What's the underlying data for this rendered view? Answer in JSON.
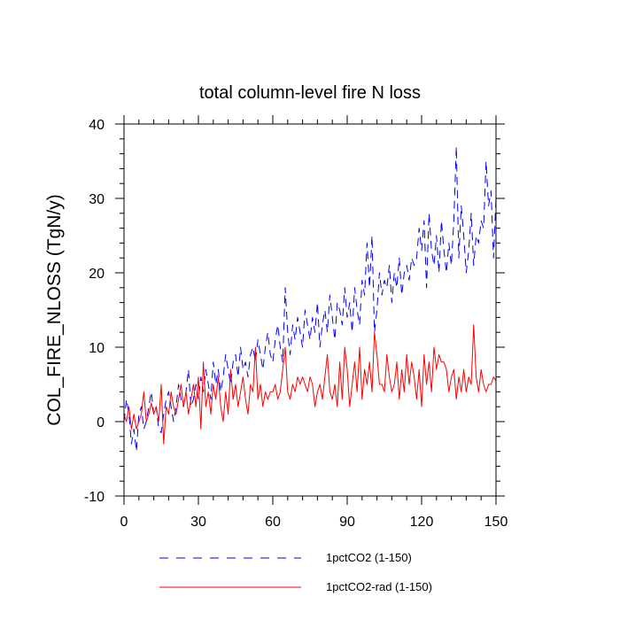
{
  "chart_data": {
    "type": "line",
    "title": "total column-level fire N loss",
    "xlabel": "",
    "ylabel": "COL_FIRE_NLOSS  (TgN/y)",
    "xlim": [
      0,
      150
    ],
    "ylim": [
      -10,
      40
    ],
    "xticks": [
      0,
      30,
      60,
      90,
      120,
      150
    ],
    "yticks": [
      -10,
      0,
      10,
      20,
      30,
      40
    ],
    "grid": false,
    "legend_position": "bottom",
    "series": [
      {
        "name": "1pctCO2 (1-150)",
        "color": "#0000ff",
        "dash": "dashed",
        "points": [
          [
            0,
            0
          ],
          [
            1,
            3
          ],
          [
            2,
            1
          ],
          [
            3,
            -3
          ],
          [
            4,
            -1
          ],
          [
            5,
            -4
          ],
          [
            6,
            1
          ],
          [
            7,
            2
          ],
          [
            8,
            -1
          ],
          [
            9,
            0
          ],
          [
            10,
            2
          ],
          [
            11,
            4
          ],
          [
            12,
            1
          ],
          [
            13,
            2
          ],
          [
            14,
            -1
          ],
          [
            15,
            -1.5
          ],
          [
            16,
            1
          ],
          [
            17,
            3
          ],
          [
            18,
            4
          ],
          [
            19,
            2
          ],
          [
            20,
            0
          ],
          [
            21,
            2
          ],
          [
            22,
            5
          ],
          [
            23,
            3
          ],
          [
            24,
            2
          ],
          [
            25,
            4
          ],
          [
            26,
            7
          ],
          [
            27,
            2
          ],
          [
            28,
            3
          ],
          [
            29,
            5
          ],
          [
            30,
            3
          ],
          [
            31,
            6
          ],
          [
            32,
            4
          ],
          [
            33,
            7
          ],
          [
            34,
            5
          ],
          [
            35,
            3
          ],
          [
            36,
            8
          ],
          [
            37,
            5
          ],
          [
            38,
            7
          ],
          [
            39,
            4
          ],
          [
            40,
            6
          ],
          [
            41,
            9
          ],
          [
            42,
            7
          ],
          [
            43,
            5
          ],
          [
            44,
            8
          ],
          [
            45,
            9
          ],
          [
            46,
            6
          ],
          [
            47,
            10
          ],
          [
            48,
            7
          ],
          [
            49,
            8
          ],
          [
            50,
            6
          ],
          [
            51,
            9
          ],
          [
            52,
            10
          ],
          [
            53,
            8
          ],
          [
            54,
            11
          ],
          [
            55,
            9
          ],
          [
            56,
            7
          ],
          [
            57,
            10
          ],
          [
            58,
            12
          ],
          [
            59,
            9
          ],
          [
            60,
            8
          ],
          [
            61,
            11
          ],
          [
            62,
            13
          ],
          [
            63,
            10
          ],
          [
            64,
            8
          ],
          [
            65,
            18
          ],
          [
            66,
            12
          ],
          [
            67,
            9
          ],
          [
            68,
            13
          ],
          [
            69,
            11
          ],
          [
            70,
            14
          ],
          [
            71,
            12
          ],
          [
            72,
            10
          ],
          [
            73,
            15
          ],
          [
            74,
            13
          ],
          [
            75,
            11
          ],
          [
            76,
            14
          ],
          [
            77,
            12
          ],
          [
            78,
            16
          ],
          [
            79,
            10
          ],
          [
            80,
            13
          ],
          [
            81,
            15
          ],
          [
            82,
            12
          ],
          [
            83,
            17
          ],
          [
            84,
            14
          ],
          [
            85,
            11
          ],
          [
            86,
            16
          ],
          [
            87,
            15
          ],
          [
            88,
            13
          ],
          [
            89,
            18
          ],
          [
            90,
            14
          ],
          [
            91,
            16
          ],
          [
            92,
            12
          ],
          [
            93,
            18
          ],
          [
            94,
            15
          ],
          [
            95,
            13
          ],
          [
            96,
            19
          ],
          [
            97,
            17
          ],
          [
            98,
            24
          ],
          [
            99,
            18
          ],
          [
            100,
            25
          ],
          [
            101,
            12
          ],
          [
            102,
            15
          ],
          [
            103,
            20
          ],
          [
            104,
            17
          ],
          [
            105,
            19
          ],
          [
            106,
            18
          ],
          [
            107,
            21
          ],
          [
            108,
            16
          ],
          [
            109,
            20
          ],
          [
            110,
            18
          ],
          [
            111,
            22
          ],
          [
            112,
            17
          ],
          [
            113,
            20
          ],
          [
            114,
            21
          ],
          [
            115,
            19
          ],
          [
            116,
            22
          ],
          [
            117,
            21
          ],
          [
            118,
            22
          ],
          [
            119,
            26
          ],
          [
            120,
            23
          ],
          [
            121,
            27
          ],
          [
            122,
            18
          ],
          [
            123,
            28
          ],
          [
            124,
            23
          ],
          [
            125,
            21
          ],
          [
            126,
            25
          ],
          [
            127,
            20
          ],
          [
            128,
            27
          ],
          [
            129,
            23
          ],
          [
            130,
            20
          ],
          [
            131,
            24
          ],
          [
            132,
            21
          ],
          [
            133,
            27
          ],
          [
            134,
            37
          ],
          [
            135,
            22
          ],
          [
            136,
            29
          ],
          [
            137,
            25
          ],
          [
            138,
            20
          ],
          [
            139,
            23
          ],
          [
            140,
            28
          ],
          [
            141,
            21
          ],
          [
            142,
            25
          ],
          [
            143,
            24
          ],
          [
            144,
            27
          ],
          [
            145,
            26
          ],
          [
            146,
            35
          ],
          [
            147,
            29
          ],
          [
            148,
            31
          ],
          [
            149,
            22
          ],
          [
            150,
            30
          ]
        ]
      },
      {
        "name": "1pctCO2-rad (1-150)",
        "color": "#ff0000",
        "dash": "solid",
        "points": [
          [
            0,
            1
          ],
          [
            1,
            0
          ],
          [
            2,
            2
          ],
          [
            3,
            -1
          ],
          [
            4,
            1
          ],
          [
            5,
            -1
          ],
          [
            6,
            0
          ],
          [
            7,
            1
          ],
          [
            8,
            4
          ],
          [
            9,
            0
          ],
          [
            10,
            1
          ],
          [
            11,
            2.5
          ],
          [
            12,
            1
          ],
          [
            13,
            2
          ],
          [
            14,
            0
          ],
          [
            15,
            5
          ],
          [
            16,
            -3
          ],
          [
            17,
            2
          ],
          [
            18,
            1
          ],
          [
            19,
            4
          ],
          [
            20,
            2
          ],
          [
            21,
            1
          ],
          [
            22,
            3
          ],
          [
            23,
            5
          ],
          [
            24,
            2
          ],
          [
            25,
            4
          ],
          [
            26,
            1
          ],
          [
            27,
            3
          ],
          [
            28,
            5
          ],
          [
            29,
            2
          ],
          [
            30,
            6
          ],
          [
            31,
            -1
          ],
          [
            32,
            8
          ],
          [
            33,
            2
          ],
          [
            34,
            4
          ],
          [
            35,
            1
          ],
          [
            36,
            5
          ],
          [
            37,
            3
          ],
          [
            38,
            6
          ],
          [
            39,
            2
          ],
          [
            40,
            0
          ],
          [
            41,
            4
          ],
          [
            42,
            1
          ],
          [
            43,
            7
          ],
          [
            44,
            3
          ],
          [
            45,
            5
          ],
          [
            46,
            2
          ],
          [
            47,
            4
          ],
          [
            48,
            6
          ],
          [
            49,
            3
          ],
          [
            50,
            1
          ],
          [
            51,
            5
          ],
          [
            52,
            4
          ],
          [
            53,
            10
          ],
          [
            54,
            3
          ],
          [
            55,
            5
          ],
          [
            56,
            2
          ],
          [
            57,
            4
          ],
          [
            58,
            3
          ],
          [
            59,
            4
          ],
          [
            60,
            4
          ],
          [
            61,
            5
          ],
          [
            62,
            3
          ],
          [
            63,
            4
          ],
          [
            64,
            7
          ],
          [
            65,
            10
          ],
          [
            66,
            4
          ],
          [
            67,
            3
          ],
          [
            68,
            5
          ],
          [
            69,
            4
          ],
          [
            70,
            6
          ],
          [
            71,
            5
          ],
          [
            72,
            6
          ],
          [
            73,
            5
          ],
          [
            74,
            4
          ],
          [
            75,
            6
          ],
          [
            76,
            5
          ],
          [
            77,
            2
          ],
          [
            78,
            4
          ],
          [
            79,
            5
          ],
          [
            80,
            3
          ],
          [
            81,
            6
          ],
          [
            82,
            9
          ],
          [
            83,
            4
          ],
          [
            84,
            3
          ],
          [
            85,
            5
          ],
          [
            86,
            2
          ],
          [
            87,
            8
          ],
          [
            88,
            3
          ],
          [
            89,
            10
          ],
          [
            90,
            7
          ],
          [
            91,
            2
          ],
          [
            92,
            5
          ],
          [
            93,
            8
          ],
          [
            94,
            4
          ],
          [
            95,
            10
          ],
          [
            96,
            3
          ],
          [
            97,
            7
          ],
          [
            98,
            5
          ],
          [
            99,
            8
          ],
          [
            100,
            4
          ],
          [
            101,
            12
          ],
          [
            102,
            9
          ],
          [
            103,
            5
          ],
          [
            104,
            5
          ],
          [
            105,
            4
          ],
          [
            106,
            9
          ],
          [
            107,
            6
          ],
          [
            108,
            4
          ],
          [
            109,
            5
          ],
          [
            110,
            8
          ],
          [
            111,
            3
          ],
          [
            112,
            7
          ],
          [
            113,
            4
          ],
          [
            114,
            9
          ],
          [
            115,
            5
          ],
          [
            116,
            8
          ],
          [
            117,
            6
          ],
          [
            118,
            3
          ],
          [
            119,
            7
          ],
          [
            120,
            2
          ],
          [
            121,
            9
          ],
          [
            122,
            5
          ],
          [
            123,
            8
          ],
          [
            124,
            4
          ],
          [
            125,
            10
          ],
          [
            126,
            7
          ],
          [
            127,
            9
          ],
          [
            128,
            8
          ],
          [
            129,
            8
          ],
          [
            130,
            7
          ],
          [
            131,
            4
          ],
          [
            132,
            6
          ],
          [
            133,
            7
          ],
          [
            134,
            3
          ],
          [
            135,
            6
          ],
          [
            136,
            4
          ],
          [
            137,
            7
          ],
          [
            138,
            4
          ],
          [
            139,
            6
          ],
          [
            140,
            5
          ],
          [
            141,
            13
          ],
          [
            142,
            6
          ],
          [
            143,
            4
          ],
          [
            144,
            7
          ],
          [
            145,
            5
          ],
          [
            146,
            4
          ],
          [
            147,
            5
          ],
          [
            148,
            5
          ],
          [
            149,
            6
          ],
          [
            150,
            5.5
          ]
        ]
      }
    ]
  }
}
